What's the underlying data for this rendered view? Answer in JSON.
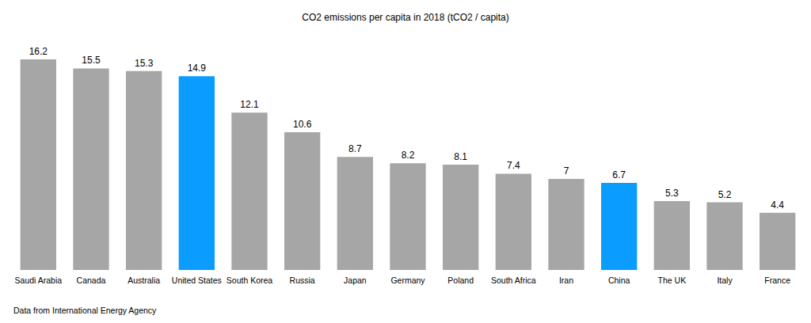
{
  "chart_data": {
    "type": "bar",
    "title": "CO2 emissions per capita in 2018 (tCO2 / capita)",
    "categories": [
      "Saudi Arabia",
      "Canada",
      "Australia",
      "United States",
      "South Korea",
      "Russia",
      "Japan",
      "Germany",
      "Poland",
      "South Africa",
      "Iran",
      "China",
      "The UK",
      "Italy",
      "France"
    ],
    "values": [
      16.2,
      15.5,
      15.3,
      14.9,
      12.1,
      10.6,
      8.7,
      8.2,
      8.1,
      7.4,
      7,
      6.7,
      5.3,
      5.2,
      4.4
    ],
    "colors": [
      "#a6a6a6",
      "#a6a6a6",
      "#a6a6a6",
      "#0a9cff",
      "#a6a6a6",
      "#a6a6a6",
      "#a6a6a6",
      "#a6a6a6",
      "#a6a6a6",
      "#a6a6a6",
      "#a6a6a6",
      "#0a9cff",
      "#a6a6a6",
      "#a6a6a6",
      "#a6a6a6"
    ],
    "ylim": [
      0,
      16.2
    ],
    "grid": false,
    "data_labels": true,
    "tick_labels": "x",
    "annotations": [
      "Data from International Energy Agency"
    ]
  }
}
